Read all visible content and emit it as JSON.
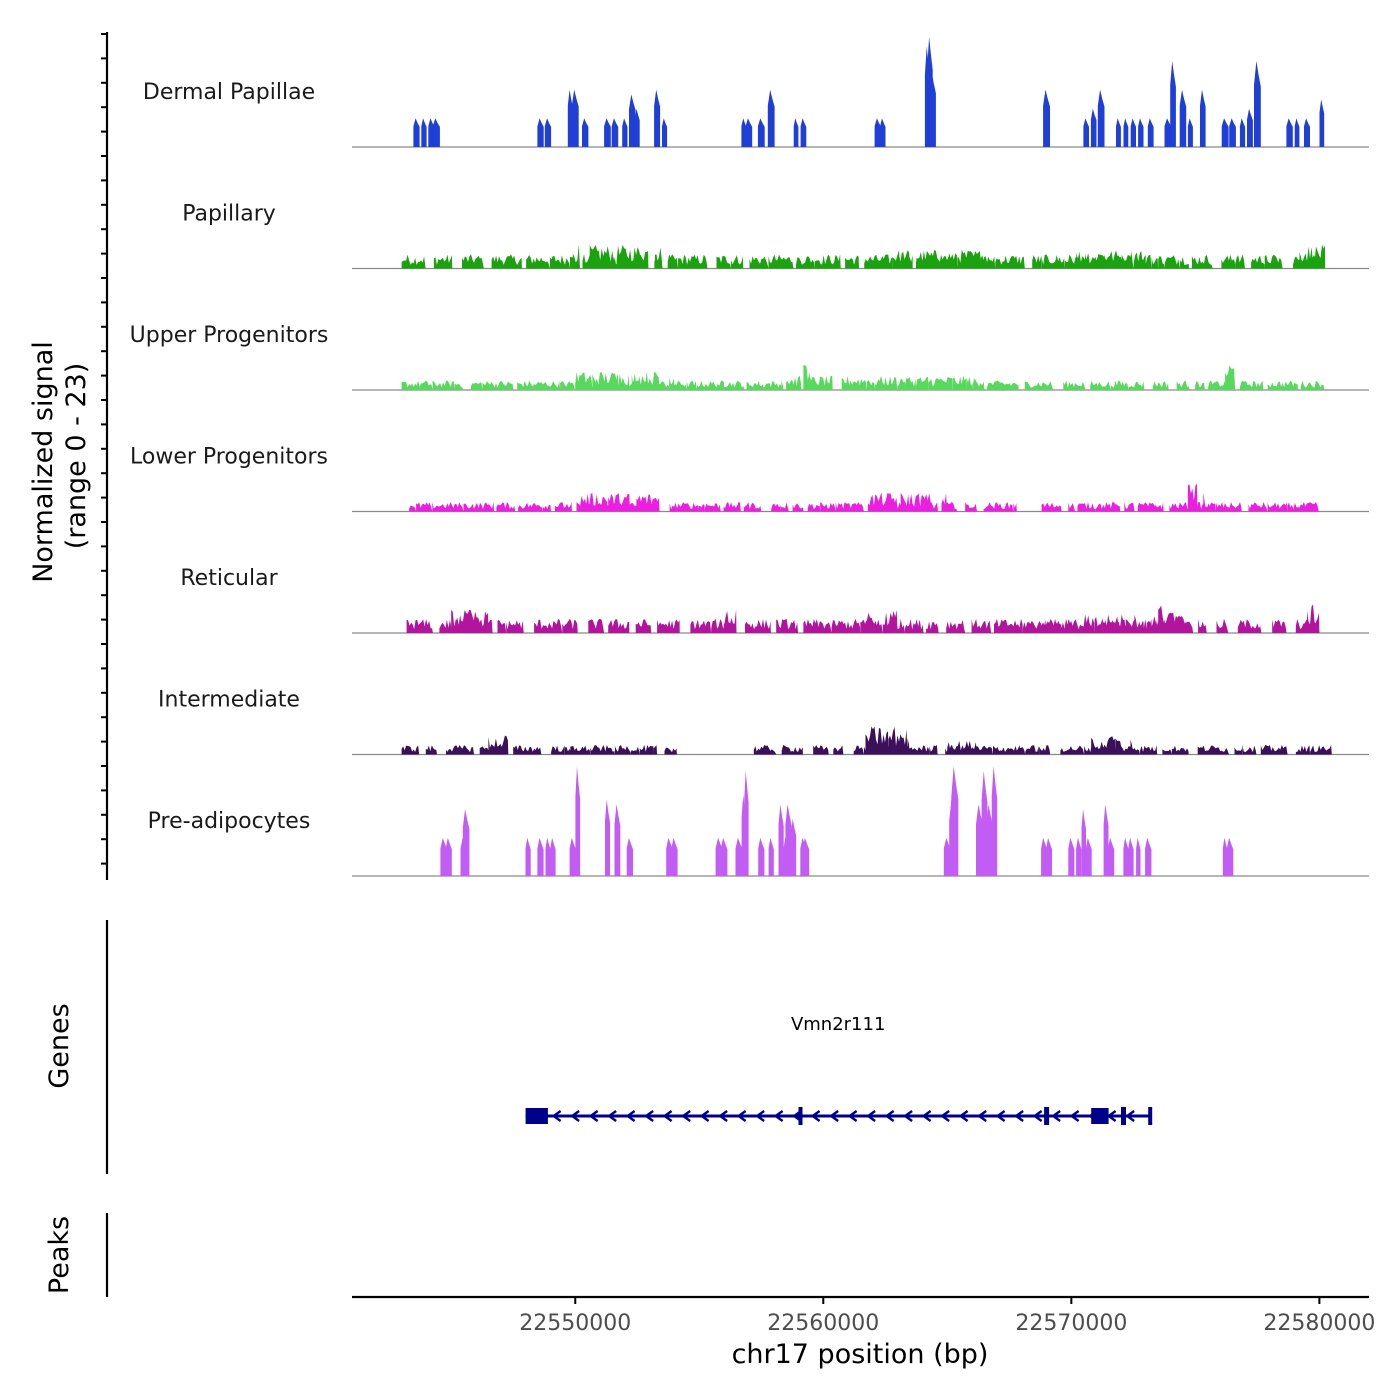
{
  "chart_data": {
    "type": "area",
    "title": "",
    "ylabel_line1": "Normalized signal",
    "ylabel_line2": "(range 0 - 23)",
    "xlabel": "chr17 position (bp)",
    "xlim": [
      22541000,
      22582000
    ],
    "ylim": [
      0,
      23
    ],
    "xticks": [
      22550000,
      22560000,
      22570000,
      22580000
    ],
    "xtick_labels": [
      "22550000",
      "22560000",
      "22570000",
      "22580000"
    ],
    "tracks": [
      {
        "name": "Dermal Papillae",
        "color": "#1f3fd6",
        "style": "spiky",
        "peaks": [
          [
            22543600,
            6
          ],
          [
            22543900,
            6
          ],
          [
            22544200,
            6
          ],
          [
            22544400,
            6
          ],
          [
            22548600,
            6
          ],
          [
            22548900,
            6
          ],
          [
            22549800,
            12
          ],
          [
            22550000,
            12
          ],
          [
            22550400,
            6
          ],
          [
            22551300,
            6
          ],
          [
            22551600,
            6
          ],
          [
            22552000,
            6
          ],
          [
            22552300,
            11
          ],
          [
            22552500,
            8
          ],
          [
            22553300,
            12
          ],
          [
            22553600,
            6
          ],
          [
            22556800,
            6
          ],
          [
            22557000,
            6
          ],
          [
            22557500,
            6
          ],
          [
            22557900,
            12
          ],
          [
            22558900,
            6
          ],
          [
            22559200,
            6
          ],
          [
            22562200,
            6
          ],
          [
            22562400,
            6
          ],
          [
            22564200,
            21
          ],
          [
            22564300,
            23
          ],
          [
            22564400,
            16
          ],
          [
            22569000,
            12
          ],
          [
            22570600,
            6
          ],
          [
            22570900,
            8
          ],
          [
            22571200,
            12
          ],
          [
            22571900,
            6
          ],
          [
            22572200,
            6
          ],
          [
            22572500,
            6
          ],
          [
            22572800,
            6
          ],
          [
            22573200,
            6
          ],
          [
            22573900,
            6
          ],
          [
            22574100,
            18
          ],
          [
            22574500,
            12
          ],
          [
            22574800,
            6
          ],
          [
            22575300,
            12
          ],
          [
            22576200,
            6
          ],
          [
            22576500,
            6
          ],
          [
            22576900,
            6
          ],
          [
            22577200,
            8
          ],
          [
            22577500,
            18
          ],
          [
            22578800,
            6
          ],
          [
            22579100,
            6
          ],
          [
            22579500,
            6
          ],
          [
            22580100,
            10
          ]
        ]
      },
      {
        "name": "Papillary",
        "color": "#1aa30e",
        "style": "broad",
        "regions": [
          [
            22543000,
            22558800,
            3
          ],
          [
            22549900,
            22553600,
            5
          ],
          [
            22558900,
            22573500,
            3
          ],
          [
            22562800,
            22566800,
            4
          ],
          [
            22570200,
            22573000,
            4
          ],
          [
            22573500,
            22580300,
            3
          ],
          [
            22579200,
            22580300,
            5
          ]
        ]
      },
      {
        "name": "Upper Progenitors",
        "color": "#58d85c",
        "style": "broad",
        "regions": [
          [
            22543000,
            22558400,
            2
          ],
          [
            22550000,
            22554000,
            4
          ],
          [
            22558500,
            22566500,
            3
          ],
          [
            22559200,
            22559500,
            6
          ],
          [
            22566600,
            22576300,
            2
          ],
          [
            22576200,
            22576600,
            6
          ],
          [
            22576800,
            22580200,
            2
          ]
        ]
      },
      {
        "name": "Lower Progenitors",
        "color": "#ec1ee0",
        "style": "broad",
        "regions": [
          [
            22543300,
            22557500,
            2
          ],
          [
            22550200,
            22553400,
            4
          ],
          [
            22557900,
            22567800,
            2
          ],
          [
            22561800,
            22565000,
            4
          ],
          [
            22568800,
            22575800,
            2
          ],
          [
            22574700,
            22575400,
            6
          ],
          [
            22575500,
            22580400,
            2
          ]
        ]
      },
      {
        "name": "Reticular",
        "color": "#b2149e",
        "style": "broad",
        "regions": [
          [
            22543200,
            22559000,
            3
          ],
          [
            22545000,
            22546500,
            5
          ],
          [
            22556000,
            22556500,
            5
          ],
          [
            22559200,
            22570000,
            3
          ],
          [
            22561700,
            22563000,
            5
          ],
          [
            22568800,
            22580000,
            3
          ],
          [
            22570500,
            22575000,
            4
          ],
          [
            22573500,
            22574200,
            6
          ],
          [
            22579500,
            22580000,
            6
          ]
        ]
      },
      {
        "name": "Intermediate",
        "color": "#3b0f5a",
        "style": "broad",
        "regions": [
          [
            22543000,
            22550000,
            2
          ],
          [
            22546500,
            22547300,
            4
          ],
          [
            22549800,
            22553300,
            2
          ],
          [
            22553600,
            22554100,
            2
          ],
          [
            22557200,
            22568000,
            2
          ],
          [
            22561700,
            22563500,
            6
          ],
          [
            22565000,
            22566200,
            3
          ],
          [
            22567800,
            22580500,
            2
          ],
          [
            22570800,
            22572500,
            4
          ]
        ]
      },
      {
        "name": "Pre-adipocytes",
        "color": "#c35cf5",
        "style": "spiky",
        "peaks": [
          [
            22544700,
            8
          ],
          [
            22544900,
            8
          ],
          [
            22545500,
            8
          ],
          [
            22545600,
            14
          ],
          [
            22548100,
            8
          ],
          [
            22548600,
            8
          ],
          [
            22548900,
            8
          ],
          [
            22549100,
            8
          ],
          [
            22549900,
            8
          ],
          [
            22550100,
            23
          ],
          [
            22551300,
            16
          ],
          [
            22551700,
            15
          ],
          [
            22552200,
            8
          ],
          [
            22553800,
            8
          ],
          [
            22554000,
            8
          ],
          [
            22555800,
            8
          ],
          [
            22556000,
            8
          ],
          [
            22556600,
            8
          ],
          [
            22556800,
            17
          ],
          [
            22556900,
            22
          ],
          [
            22557500,
            8
          ],
          [
            22557900,
            8
          ],
          [
            22558300,
            15
          ],
          [
            22558500,
            8
          ],
          [
            22558600,
            15
          ],
          [
            22558800,
            12
          ],
          [
            22559200,
            8
          ],
          [
            22559300,
            8
          ],
          [
            22565000,
            8
          ],
          [
            22565200,
            16
          ],
          [
            22565300,
            23
          ],
          [
            22566300,
            15
          ],
          [
            22566500,
            22
          ],
          [
            22566700,
            15
          ],
          [
            22566900,
            23
          ],
          [
            22568900,
            8
          ],
          [
            22569100,
            8
          ],
          [
            22570000,
            8
          ],
          [
            22570300,
            8
          ],
          [
            22570500,
            14
          ],
          [
            22570700,
            8
          ],
          [
            22571400,
            15
          ],
          [
            22571600,
            8
          ],
          [
            22572200,
            8
          ],
          [
            22572400,
            8
          ],
          [
            22572700,
            8
          ],
          [
            22573100,
            8
          ],
          [
            22576200,
            8
          ],
          [
            22576400,
            8
          ]
        ]
      }
    ],
    "gene_track_label": "Genes",
    "gene": {
      "name": "Vmn2r111",
      "strand": "-",
      "start": 22548000,
      "end": 22573200,
      "exons": [
        [
          22548000,
          22548900
        ],
        [
          22559000,
          22559100
        ],
        [
          22568900,
          22569100
        ],
        [
          22570800,
          22571500
        ],
        [
          22572000,
          22572200
        ],
        [
          22573100,
          22573200
        ]
      ]
    },
    "peaks_track_label": "Peaks"
  }
}
